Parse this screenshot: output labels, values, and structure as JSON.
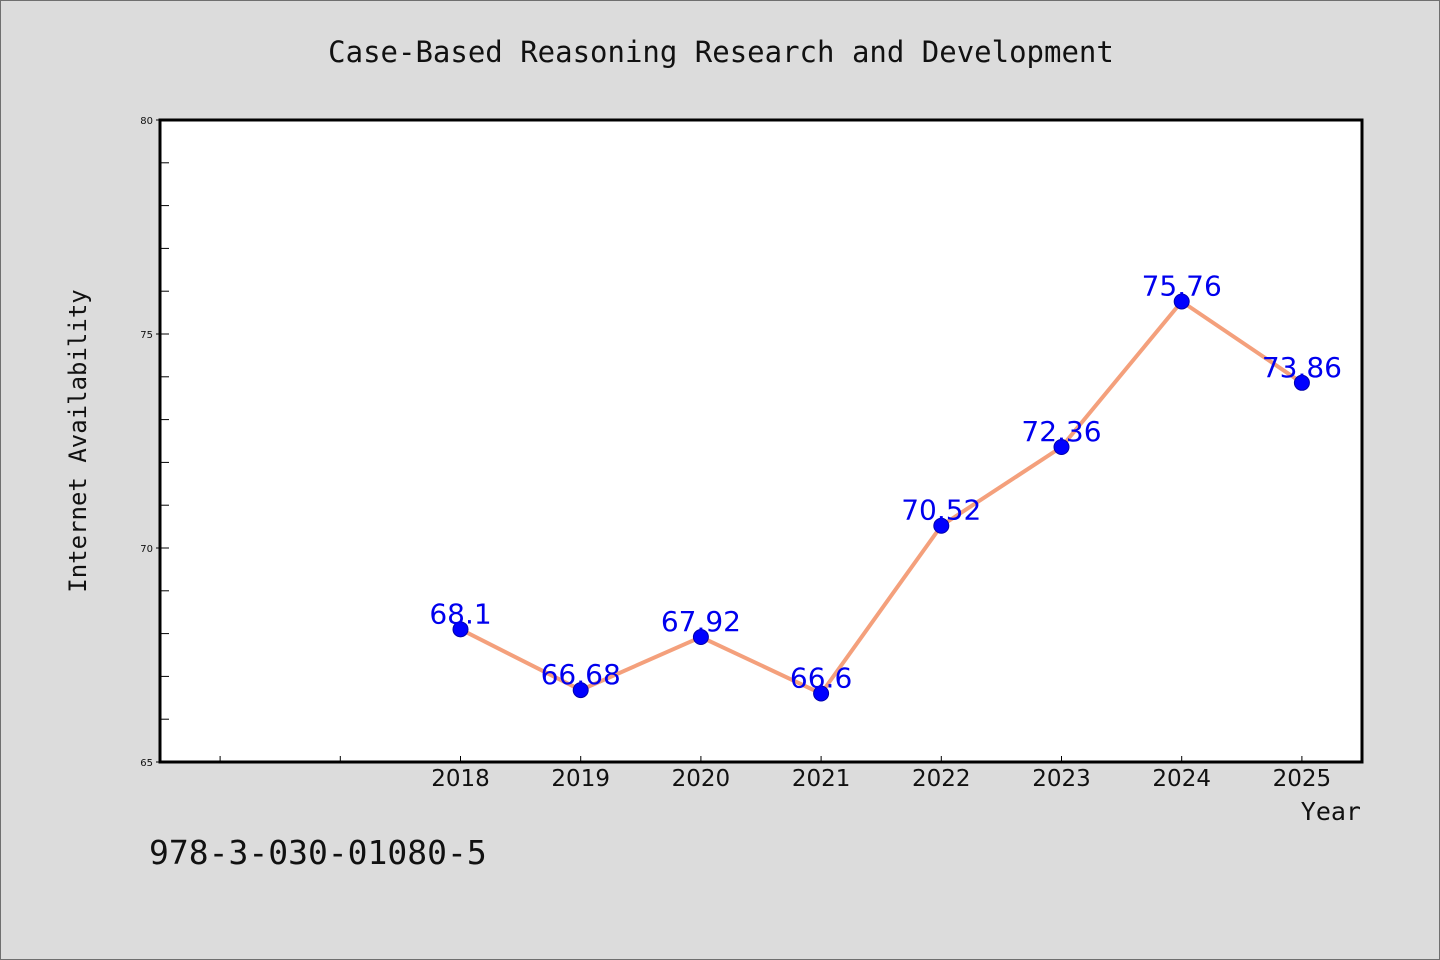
{
  "chart_data": {
    "type": "line",
    "title": "Case-Based Reasoning Research and Development",
    "xlabel": "Year",
    "ylabel": "Internet Availability",
    "categories": [
      "2018",
      "2019",
      "2020",
      "2021",
      "2022",
      "2023",
      "2024",
      "2025"
    ],
    "series": [
      {
        "values": [
          68.1,
          66.68,
          67.92,
          66.6,
          70.52,
          72.36,
          75.76,
          73.86
        ],
        "labels": [
          "68.1",
          "66.68",
          "67.92",
          "66.6",
          "70.52",
          "72.36",
          "75.76",
          "73.86"
        ]
      }
    ],
    "ylim": [
      65,
      80
    ],
    "yticks": [
      "65",
      "70",
      "75",
      "80"
    ],
    "grid": false,
    "legend": "none",
    "colors": {
      "line": "#f4a07c",
      "marker": "#0000ff",
      "data_label": "#0000ee",
      "plot_background": "#ffffff",
      "page_background": "#dcdcdc"
    }
  },
  "footer": {
    "text": "978-3-030-01080-5"
  }
}
